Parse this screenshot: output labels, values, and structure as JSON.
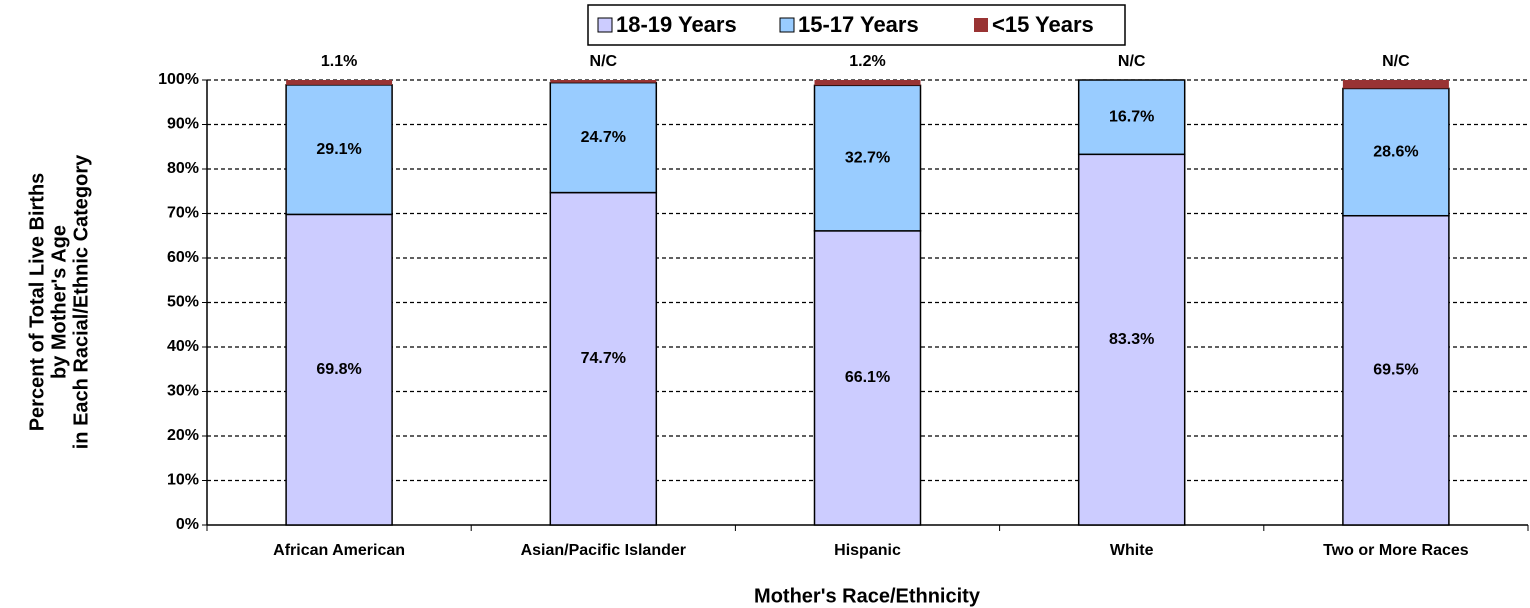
{
  "chart_data": {
    "type": "stacked_bar",
    "xlabel": "Mother's Race/Ethnicity",
    "ylabel": [
      "Percent of Total Live Births",
      "by Mother's Age",
      "in Each Racial/Ethnic Category"
    ],
    "categories": [
      "African American",
      "Asian/Pacific Islander",
      "Hispanic",
      "White",
      "Two or More Races"
    ],
    "series": [
      {
        "name": "18-19 Years",
        "color": "#ccccff",
        "values": [
          69.8,
          74.7,
          66.1,
          83.3,
          69.5
        ],
        "value_labels": [
          "69.8%",
          "74.7%",
          "66.1%",
          "83.3%",
          "69.5%"
        ]
      },
      {
        "name": "15-17 Years",
        "color": "#99ccff",
        "values": [
          29.1,
          24.7,
          32.7,
          16.7,
          28.6
        ],
        "value_labels": [
          "29.1%",
          "24.7%",
          "32.7%",
          "16.7%",
          "28.6%"
        ]
      },
      {
        "name": "<15 Years",
        "color": "#993333",
        "values": [
          1.1,
          0.6,
          1.2,
          0,
          1.9
        ],
        "value_labels": [
          "1.1%",
          "N/C",
          "1.2%",
          "N/C",
          "N/C"
        ]
      }
    ],
    "ylim": [
      0,
      100
    ],
    "yticks": [
      {
        "value": 0,
        "label": "0%"
      },
      {
        "value": 10,
        "label": "10%"
      },
      {
        "value": 20,
        "label": "20%"
      },
      {
        "value": 30,
        "label": "30%"
      },
      {
        "value": 40,
        "label": "40%"
      },
      {
        "value": 50,
        "label": "50%"
      },
      {
        "value": 60,
        "label": "60%"
      },
      {
        "value": 70,
        "label": "70%"
      },
      {
        "value": 80,
        "label": "80%"
      },
      {
        "value": 90,
        "label": "90%"
      },
      {
        "value": 100,
        "label": "100%"
      }
    ],
    "grid": true,
    "legend": "top"
  }
}
